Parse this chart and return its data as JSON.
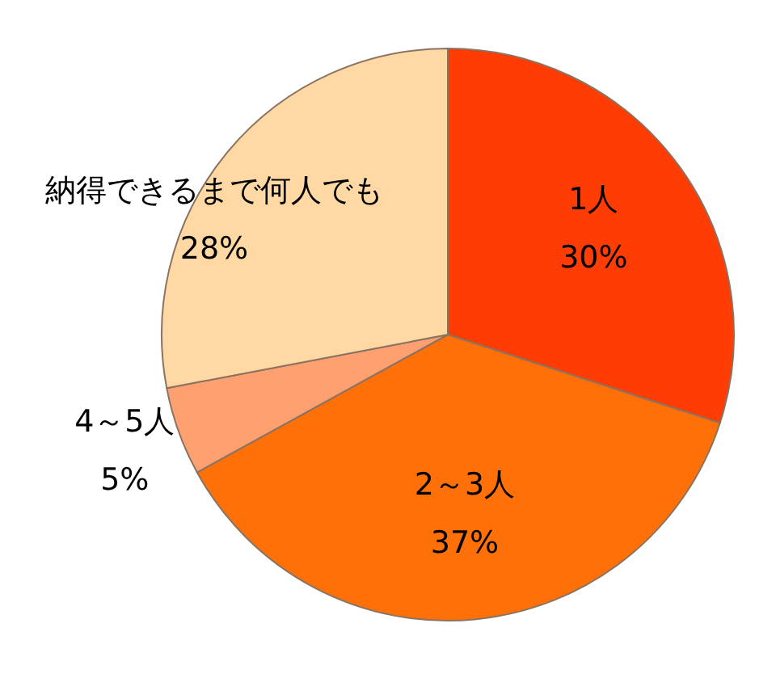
{
  "chart_data": {
    "type": "pie",
    "categories": [
      "1人",
      "2～3人",
      "4～5人",
      "納得できるまで何人でも"
    ],
    "values": [
      30,
      37,
      5,
      28
    ],
    "colors": [
      "#ff3c04",
      "#ff7008",
      "#ffa070",
      "#ffd8a4"
    ],
    "value_labels": [
      "30%",
      "37%",
      "5%",
      "28%"
    ]
  }
}
